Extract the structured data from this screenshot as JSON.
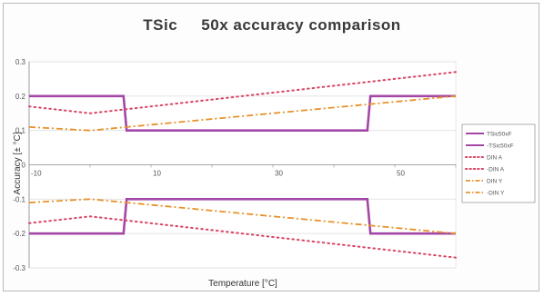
{
  "chart_data": {
    "type": "line",
    "title": "TSic     50x accuracy comparison",
    "xlabel": "Temperature [°C]",
    "ylabel": "Accuracy [± °C]",
    "xlim": [
      -10,
      60
    ],
    "ylim": [
      -0.3,
      0.3
    ],
    "x_ticks": [
      -10,
      10,
      30,
      50
    ],
    "x_tick_labels": [
      "-10",
      "10",
      "30",
      "50"
    ],
    "y_ticks": [
      -0.3,
      -0.2,
      -0.1,
      0,
      0.1,
      0.2,
      0.3
    ],
    "y_tick_labels": [
      "-0.3",
      "-0.2",
      "-0.1",
      "0",
      "0.1",
      "0.2",
      "0.3"
    ],
    "grid": "horizontal",
    "legend": "right",
    "series": [
      {
        "name": "TSic50xF",
        "style": "solid",
        "color": "#a347a6",
        "x": [
          -10,
          5.5,
          6,
          45.5,
          46,
          60
        ],
        "y": [
          0.2,
          0.2,
          0.1,
          0.1,
          0.2,
          0.2
        ]
      },
      {
        "name": "-TSic50xF",
        "style": "solid",
        "color": "#a347a6",
        "x": [
          -10,
          5.5,
          6,
          45.5,
          46,
          60
        ],
        "y": [
          -0.2,
          -0.2,
          -0.1,
          -0.1,
          -0.2,
          -0.2
        ]
      },
      {
        "name": "DIN A",
        "style": "dotted",
        "color": "#d94463",
        "x": [
          -10,
          0,
          60
        ],
        "y": [
          0.17,
          0.15,
          0.27
        ]
      },
      {
        "name": "-DIN A",
        "style": "dotted",
        "color": "#d94463",
        "x": [
          -10,
          0,
          60
        ],
        "y": [
          -0.17,
          -0.15,
          -0.27
        ]
      },
      {
        "name": "DIN Y",
        "style": "dashdot",
        "color": "#e8922c",
        "x": [
          -10,
          0,
          60
        ],
        "y": [
          0.11,
          0.1,
          0.2
        ]
      },
      {
        "name": "-DIN Y",
        "style": "dashdot",
        "color": "#e8922c",
        "x": [
          -10,
          0,
          60
        ],
        "y": [
          -0.11,
          -0.1,
          -0.2
        ]
      }
    ]
  }
}
